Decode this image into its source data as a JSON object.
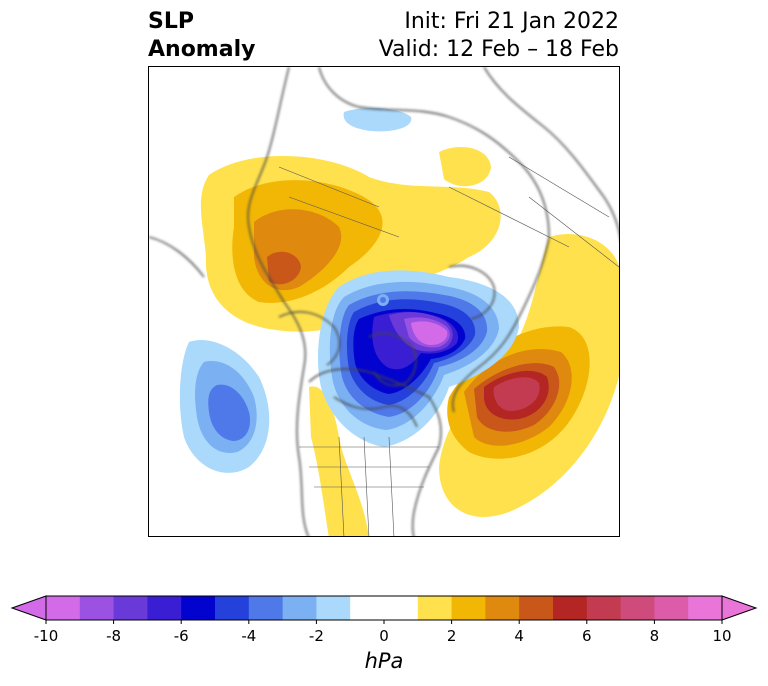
{
  "title": {
    "line1": "SLP",
    "line2": "Anomaly"
  },
  "forecast": {
    "init": "Init: Fri 21 Jan 2022",
    "valid": "Valid: 12 Feb – 18 Feb"
  },
  "colorbar": {
    "unit": "hPa",
    "ticks": [
      "-10",
      "-8",
      "-6",
      "-4",
      "-2",
      "0",
      "2",
      "4",
      "6",
      "8",
      "10"
    ],
    "colors": [
      "#d36be9",
      "#9b52e3",
      "#6a3ad9",
      "#3a1ed3",
      "#0303cf",
      "#2541db",
      "#4f78e8",
      "#7bb0f2",
      "#aad9fb",
      "#ffffff",
      "#ffffff",
      "#ffe14d",
      "#f2b705",
      "#df8a0e",
      "#c9571a",
      "#b32623",
      "#c23b50",
      "#cf4b7c",
      "#dc5ca9",
      "#ea75d8"
    ],
    "min_extend_color": "#d36be9",
    "max_extend_color": "#ea75d8"
  }
}
